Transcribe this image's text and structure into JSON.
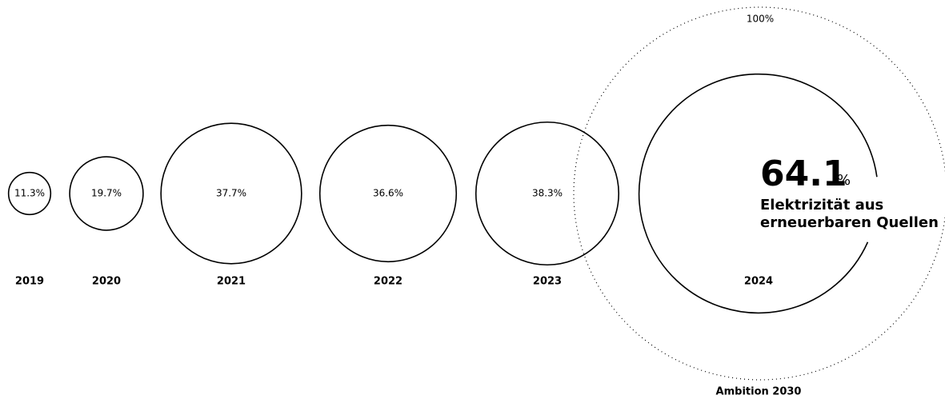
{
  "chart_data": {
    "type": "bubble",
    "categories": [
      "2019",
      "2020",
      "2021",
      "2022",
      "2023",
      "2024"
    ],
    "values": [
      11.3,
      19.7,
      37.7,
      36.6,
      38.3,
      64.1
    ],
    "value_labels": [
      "11.3%",
      "19.7%",
      "37.7%",
      "36.6%",
      "38.3%",
      "64.1"
    ],
    "highlight_unit": "%",
    "highlight_label": [
      "Elektrizität aus",
      "erneuerbaren Quellen"
    ],
    "target": {
      "value": 100,
      "value_label": "100%",
      "label": "Ambition 2030"
    },
    "color": "#000000"
  }
}
